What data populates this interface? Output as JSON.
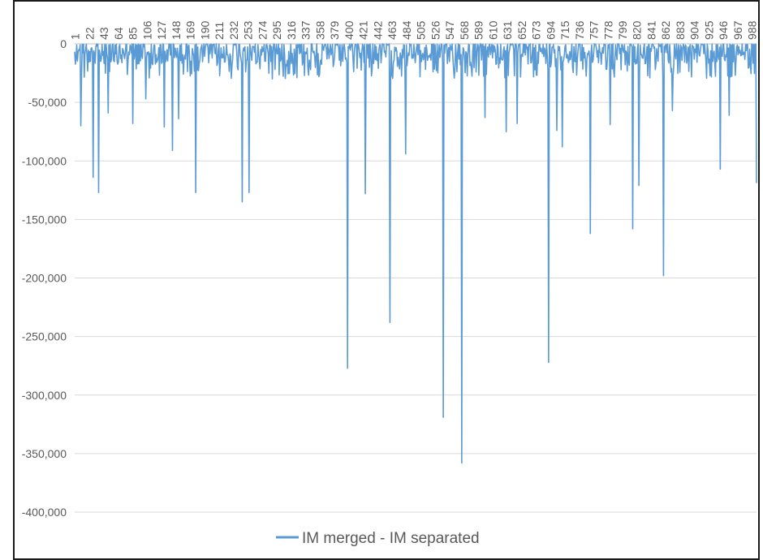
{
  "chart_data": {
    "type": "line",
    "title": "",
    "xlabel": "",
    "ylabel": "",
    "ylim": [
      -400000,
      0
    ],
    "yticks": [
      0,
      -50000,
      -100000,
      -150000,
      -200000,
      -250000,
      -300000,
      -350000,
      -400000
    ],
    "ytick_labels": [
      "0",
      "-50,000",
      "-100,000",
      "-150,000",
      "-200,000",
      "-250,000",
      "-300,000",
      "-350,000",
      "-400,000"
    ],
    "x_range": [
      1,
      998
    ],
    "xtick_labels": [
      "1",
      "22",
      "43",
      "64",
      "85",
      "106",
      "127",
      "148",
      "169",
      "190",
      "211",
      "232",
      "253",
      "274",
      "295",
      "316",
      "337",
      "358",
      "379",
      "400",
      "421",
      "442",
      "463",
      "484",
      "505",
      "526",
      "547",
      "568",
      "589",
      "610",
      "631",
      "652",
      "673",
      "694",
      "715",
      "736",
      "757",
      "778",
      "799",
      "820",
      "841",
      "862",
      "883",
      "904",
      "925",
      "946",
      "967",
      "988"
    ],
    "grid": true,
    "legend_position": "bottom",
    "series": [
      {
        "name": "IM merged - IM separated",
        "color": "#5b9bd5",
        "baseline_noise": [
          -2000,
          -30000
        ],
        "spikes": [
          [
            10,
            -70000
          ],
          [
            28,
            -114000
          ],
          [
            36,
            -127000
          ],
          [
            50,
            -59000
          ],
          [
            86,
            -68000
          ],
          [
            105,
            -47000
          ],
          [
            132,
            -71000
          ],
          [
            144,
            -91000
          ],
          [
            153,
            -64000
          ],
          [
            178,
            -127000
          ],
          [
            246,
            -135000
          ],
          [
            256,
            -127000
          ],
          [
            400,
            -277000
          ],
          [
            426,
            -128000
          ],
          [
            462,
            -238000
          ],
          [
            485,
            -94000
          ],
          [
            540,
            -319000
          ],
          [
            567,
            -358000
          ],
          [
            601,
            -63000
          ],
          [
            632,
            -75000
          ],
          [
            648,
            -68000
          ],
          [
            694,
            -272000
          ],
          [
            706,
            -74000
          ],
          [
            714,
            -88000
          ],
          [
            755,
            -162000
          ],
          [
            784,
            -69000
          ],
          [
            817,
            -158000
          ],
          [
            826,
            -121000
          ],
          [
            862,
            -198000
          ],
          [
            875,
            -57000
          ],
          [
            945,
            -107000
          ],
          [
            958,
            -61000
          ],
          [
            998,
            -119000
          ]
        ]
      }
    ]
  }
}
